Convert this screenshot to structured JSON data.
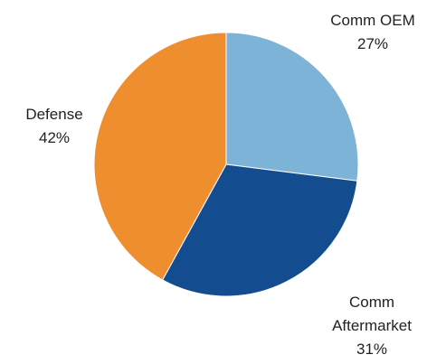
{
  "chart_data": {
    "type": "pie",
    "slices": [
      {
        "label_lines": [
          "Comm OEM"
        ],
        "value": 27,
        "value_label": "27%",
        "color": "#7EB3D8"
      },
      {
        "label_lines": [
          "Comm",
          "Aftermarket"
        ],
        "value": 31,
        "value_label": "31%",
        "color": "#144D8F"
      },
      {
        "label_lines": [
          "Defense"
        ],
        "value": 42,
        "value_label": "42%",
        "color": "#EF8E2E"
      }
    ],
    "start_angle_deg": 0,
    "direction": "clockwise"
  }
}
